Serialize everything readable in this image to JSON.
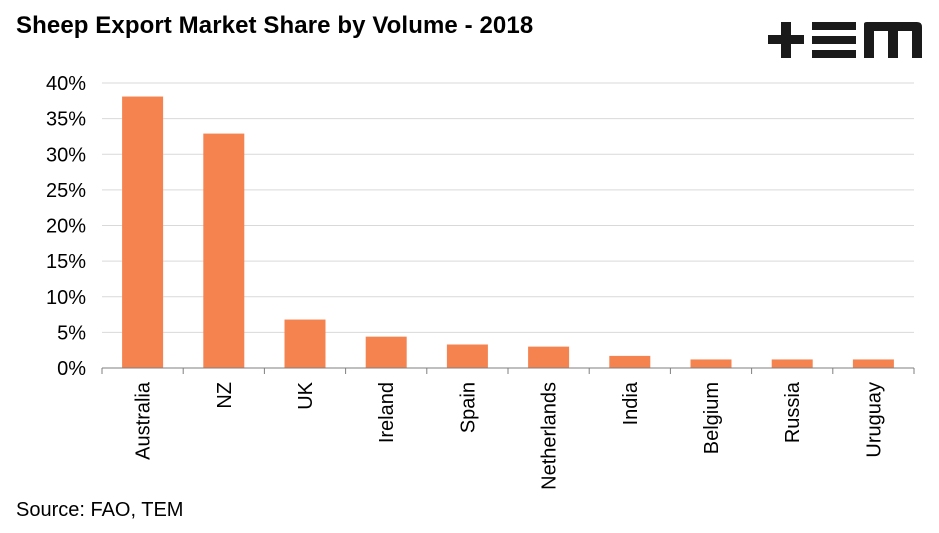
{
  "header": {
    "title": "Sheep Export Market Share by Volume - 2018",
    "logo_text": "+TEM"
  },
  "footer": {
    "source": "Source: FAO, TEM"
  },
  "colors": {
    "bar": "#F5834F",
    "grid": "#D9D9D9",
    "axis": "#7F7F7F",
    "logo": "#1A1A1A"
  },
  "chart_data": {
    "type": "bar",
    "title": "Sheep Export Market Share by Volume - 2018",
    "xlabel": "",
    "ylabel": "",
    "ylim": [
      0,
      40
    ],
    "y_ticks": [
      0,
      5,
      10,
      15,
      20,
      25,
      30,
      35,
      40
    ],
    "y_tick_labels": [
      "0%",
      "5%",
      "10%",
      "15%",
      "20%",
      "25%",
      "30%",
      "35%",
      "40%"
    ],
    "categories": [
      "Australia",
      "NZ",
      "UK",
      "Ireland",
      "Spain",
      "Netherlands",
      "India",
      "Belgium",
      "Russia",
      "Uruguay"
    ],
    "values": [
      38.1,
      32.9,
      6.8,
      4.4,
      3.3,
      3.0,
      1.7,
      1.2,
      1.2,
      1.2
    ],
    "grid": true,
    "legend": "none"
  }
}
